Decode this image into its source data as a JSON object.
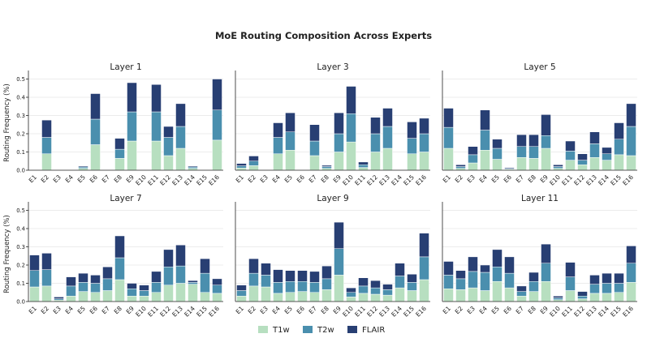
{
  "chart_data": {
    "type": "bar",
    "stacked": true,
    "title": "MoE Routing Composition Across Experts",
    "ylabel": "Routing Frequency (%)",
    "ylim": [
      0,
      0.52
    ],
    "yticks": [
      "0.0",
      "0.1",
      "0.2",
      "0.3",
      "0.4",
      "0.5"
    ],
    "grid": true,
    "legend_position": "bottom-center",
    "categories": [
      "E1",
      "E2",
      "E3",
      "E4",
      "E5",
      "E6",
      "E7",
      "E8",
      "E9",
      "E10",
      "E11",
      "E12",
      "E13",
      "E14",
      "E15",
      "E16"
    ],
    "series": [
      {
        "name": "T1w",
        "color": "#b7dfc0"
      },
      {
        "name": "T2w",
        "color": "#4a8fae"
      },
      {
        "name": "FLAIR",
        "color": "#283f73"
      }
    ],
    "panels": [
      {
        "title": "Layer 1",
        "values": [
          [
            0,
            0.09,
            0,
            0,
            0.01,
            0.14,
            0,
            0.065,
            0.16,
            0,
            0.16,
            0.08,
            0.12,
            0.01,
            0,
            0.165
          ],
          [
            0,
            0.09,
            0,
            0,
            0.008,
            0.14,
            0,
            0.05,
            0.16,
            0,
            0.16,
            0.1,
            0.12,
            0.008,
            0,
            0.165
          ],
          [
            0,
            0.095,
            0,
            0,
            0.005,
            0.14,
            0,
            0.06,
            0.16,
            0,
            0.15,
            0.06,
            0.125,
            0.005,
            0,
            0.17
          ]
        ]
      },
      {
        "title": "Layer 3",
        "values": [
          [
            0.012,
            0.025,
            0,
            0.09,
            0.11,
            0,
            0.08,
            0.01,
            0.1,
            0.155,
            0.015,
            0.1,
            0.12,
            0,
            0.09,
            0.1
          ],
          [
            0.012,
            0.025,
            0,
            0.09,
            0.1,
            0,
            0.08,
            0.01,
            0.1,
            0.155,
            0.015,
            0.1,
            0.12,
            0,
            0.085,
            0.1
          ],
          [
            0.013,
            0.028,
            0,
            0.08,
            0.105,
            0,
            0.09,
            0.007,
            0.115,
            0.15,
            0.015,
            0.09,
            0.1,
            0,
            0.09,
            0.085
          ]
        ]
      },
      {
        "title": "Layer 5",
        "values": [
          [
            0.12,
            0.01,
            0.04,
            0.11,
            0.06,
            0.005,
            0.07,
            0.065,
            0.12,
            0.01,
            0.055,
            0.03,
            0.07,
            0.055,
            0.085,
            0.08
          ],
          [
            0.115,
            0.01,
            0.045,
            0.11,
            0.06,
            0.004,
            0.06,
            0.065,
            0.07,
            0.01,
            0.05,
            0.025,
            0.075,
            0.035,
            0.085,
            0.16
          ],
          [
            0.105,
            0.01,
            0.045,
            0.11,
            0.05,
            0.005,
            0.065,
            0.065,
            0.115,
            0.01,
            0.055,
            0.035,
            0.065,
            0.035,
            0.09,
            0.125
          ]
        ]
      },
      {
        "title": "Layer 7",
        "values": [
          [
            0.08,
            0.085,
            0.008,
            0.03,
            0.055,
            0.05,
            0.06,
            0.12,
            0.03,
            0.03,
            0.05,
            0.09,
            0.1,
            0.095,
            0.05,
            0.045
          ],
          [
            0.09,
            0.09,
            0.007,
            0.055,
            0.05,
            0.05,
            0.065,
            0.12,
            0.04,
            0.03,
            0.055,
            0.1,
            0.095,
            0.01,
            0.105,
            0.045
          ],
          [
            0.085,
            0.09,
            0.01,
            0.05,
            0.05,
            0.045,
            0.065,
            0.12,
            0.03,
            0.03,
            0.06,
            0.095,
            0.115,
            0.01,
            0.08,
            0.035
          ]
        ]
      },
      {
        "title": "Layer 9",
        "values": [
          [
            0.03,
            0.085,
            0.08,
            0.045,
            0.05,
            0.055,
            0.05,
            0.065,
            0.145,
            0.025,
            0.045,
            0.04,
            0.035,
            0.075,
            0.06,
            0.12
          ],
          [
            0.03,
            0.07,
            0.065,
            0.06,
            0.06,
            0.055,
            0.055,
            0.06,
            0.145,
            0.025,
            0.04,
            0.035,
            0.03,
            0.065,
            0.045,
            0.125
          ],
          [
            0.03,
            0.08,
            0.065,
            0.07,
            0.06,
            0.06,
            0.06,
            0.07,
            0.145,
            0.025,
            0.045,
            0.04,
            0.03,
            0.07,
            0.045,
            0.13
          ]
        ]
      },
      {
        "title": "Layer 11",
        "values": [
          [
            0.07,
            0.065,
            0.075,
            0.06,
            0.11,
            0.075,
            0.03,
            0.055,
            0.11,
            0.01,
            0.06,
            0.015,
            0.045,
            0.045,
            0.05,
            0.105
          ],
          [
            0.075,
            0.06,
            0.09,
            0.1,
            0.08,
            0.08,
            0.025,
            0.055,
            0.1,
            0.01,
            0.075,
            0.015,
            0.05,
            0.055,
            0.05,
            0.105
          ],
          [
            0.075,
            0.045,
            0.08,
            0.04,
            0.095,
            0.09,
            0.03,
            0.05,
            0.105,
            0.01,
            0.08,
            0.025,
            0.05,
            0.055,
            0.055,
            0.095
          ]
        ]
      }
    ]
  }
}
